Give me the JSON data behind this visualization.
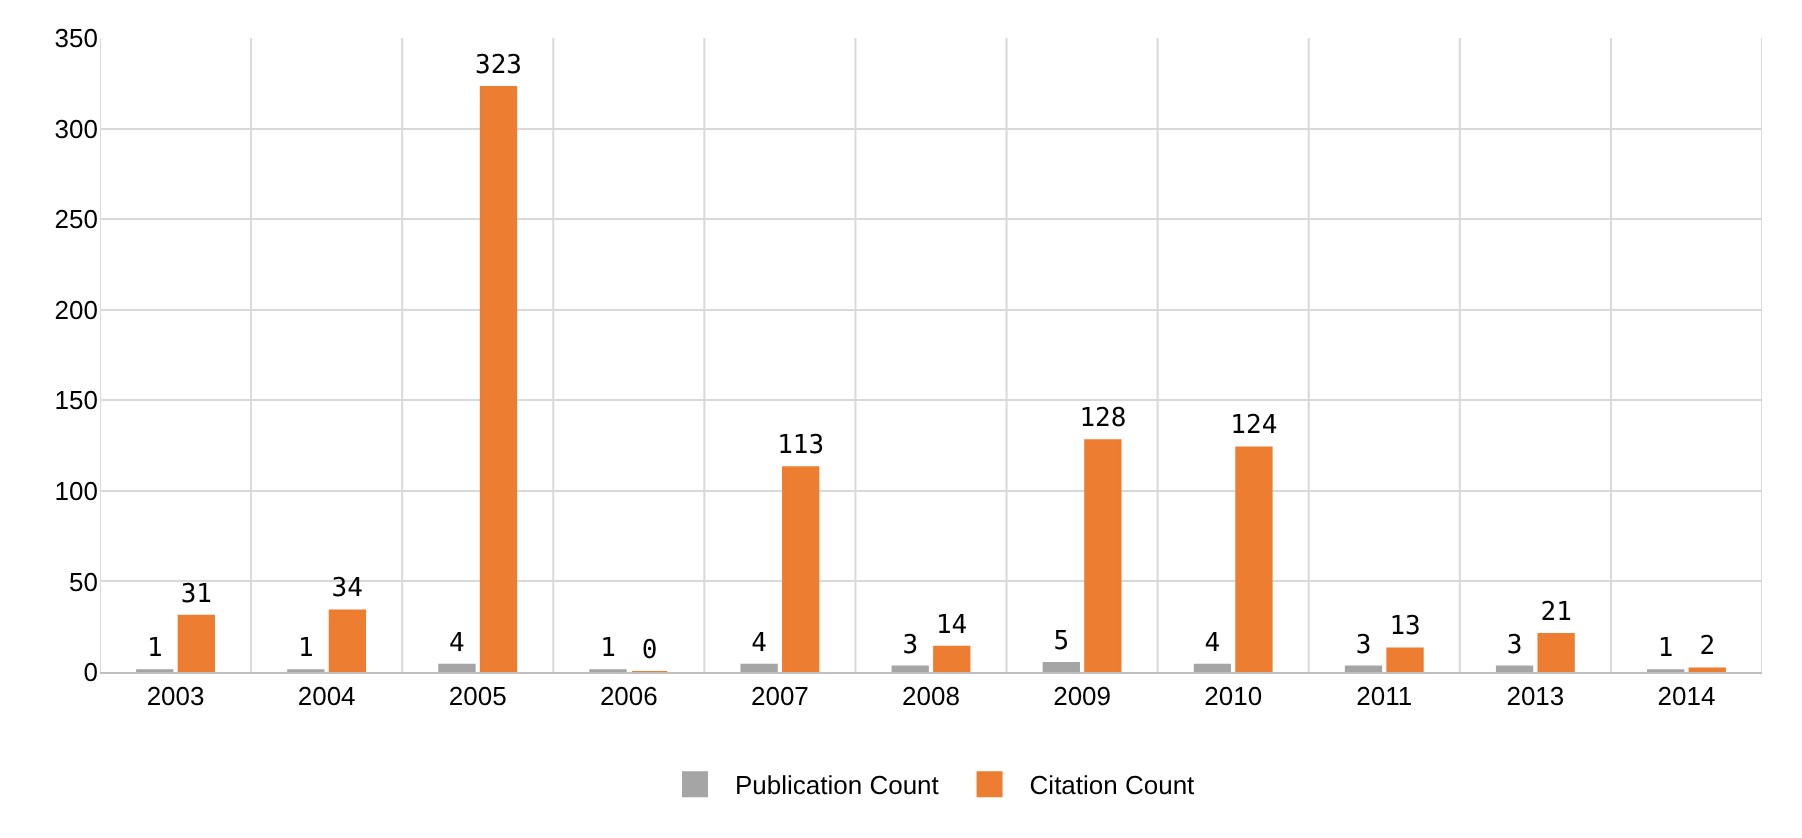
{
  "chart_data": {
    "type": "bar",
    "categories": [
      "2003",
      "2004",
      "2005",
      "2006",
      "2007",
      "2008",
      "2009",
      "2010",
      "2011",
      "2013",
      "2014"
    ],
    "series": [
      {
        "name": "Publication Count",
        "color": "#a5a5a5",
        "values": [
          1,
          1,
          4,
          1,
          4,
          3,
          5,
          4,
          3,
          3,
          1
        ]
      },
      {
        "name": "Citation Count",
        "color": "#ed7d31",
        "values": [
          31,
          34,
          323,
          0,
          113,
          14,
          128,
          124,
          13,
          21,
          2
        ]
      }
    ],
    "ylim": [
      0,
      350
    ],
    "yticks": [
      0,
      50,
      100,
      150,
      200,
      250,
      300,
      350
    ],
    "grid": true,
    "legend": "bottom",
    "data_labels": true
  }
}
